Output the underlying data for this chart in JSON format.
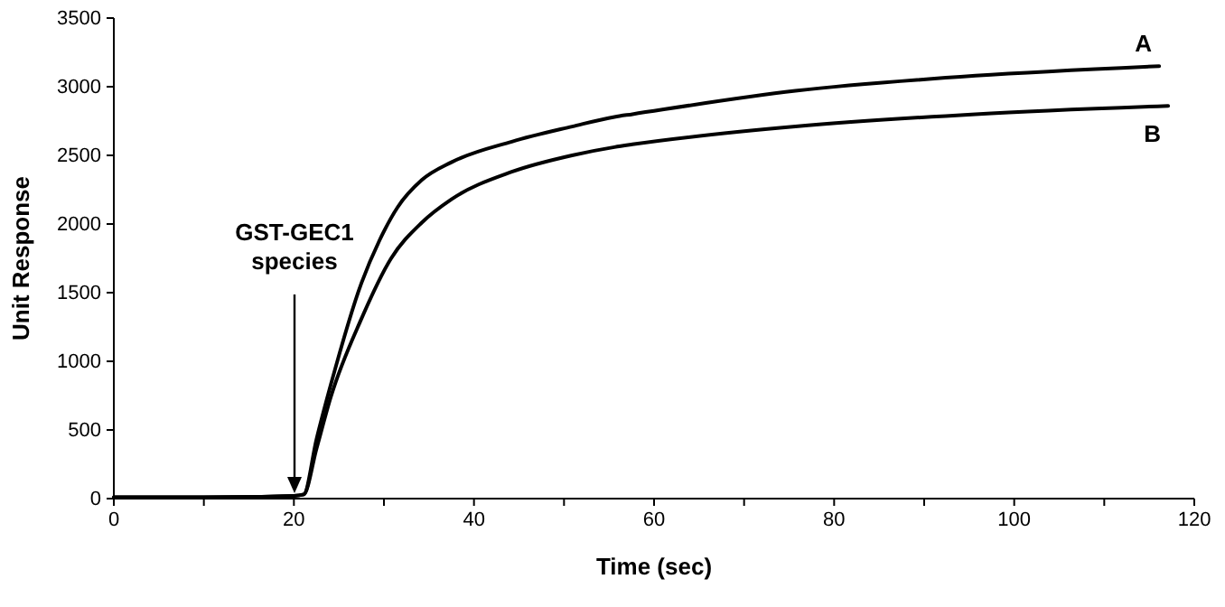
{
  "chart_data": {
    "type": "line",
    "xlabel": "Time (sec)",
    "ylabel": "Unit Response",
    "xlim": [
      0,
      120
    ],
    "ylim": [
      0,
      3500
    ],
    "xticks": [
      0,
      {
        "value": 10,
        "label": null
      },
      20,
      {
        "value": 30,
        "label": null
      },
      40,
      {
        "value": 50,
        "label": null
      },
      60,
      {
        "value": 70,
        "label": null
      },
      80,
      {
        "value": 90,
        "label": null
      },
      100,
      {
        "value": 110,
        "label": null
      },
      120
    ],
    "yticks": [
      0,
      500,
      1000,
      1500,
      2000,
      2500,
      3000,
      3500
    ],
    "grid": false,
    "legend": false,
    "marker": "none",
    "line_style": "solid",
    "annotations": [
      "GST-GEC1\nspecies"
    ],
    "series": [
      {
        "name": "A",
        "color": "#000000",
        "x": [
          0,
          10,
          20,
          21.1,
          22.5,
          24.1,
          27.5,
          29.5,
          31.5,
          34.2,
          37.5,
          44.2,
          50.9,
          55.6,
          57.6,
          75.7,
          95.7,
          116.1
        ],
        "values": [
          10,
          10,
          20,
          30,
          430,
          830,
          1570,
          1880,
          2120,
          2320,
          2450,
          2600,
          2710,
          2780,
          2800,
          2970,
          3080,
          3150
        ]
      },
      {
        "name": "B",
        "color": "#000000",
        "x": [
          0,
          10,
          20,
          21.1,
          22.5,
          24.1,
          27.5,
          30.8,
          34.2,
          37.5,
          44.2,
          50.9,
          55.6,
          57.6,
          75.7,
          95.7,
          117.1
        ],
        "values": [
          10,
          10,
          20,
          30,
          360,
          740,
          1310,
          1750,
          2010,
          2180,
          2380,
          2500,
          2560,
          2580,
          2710,
          2800,
          2860
        ]
      }
    ]
  }
}
